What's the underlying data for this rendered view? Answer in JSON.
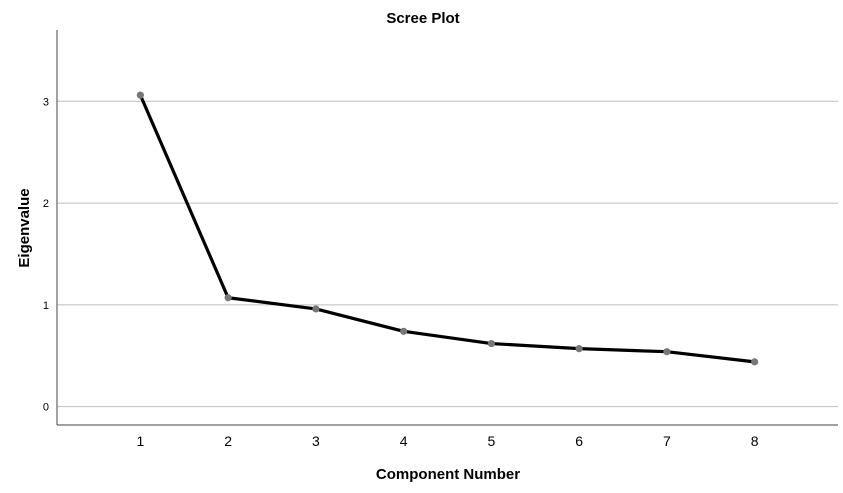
{
  "chart_data": {
    "type": "line",
    "title": "Scree Plot",
    "xlabel": "Component Number",
    "ylabel": "Eigenvalue",
    "x": [
      1,
      2,
      3,
      4,
      5,
      6,
      7,
      8
    ],
    "series": [
      {
        "values": [
          3.06,
          1.07,
          0.96,
          0.74,
          0.62,
          0.57,
          0.54,
          0.44
        ]
      }
    ],
    "xlim": [
      0.05,
      8.95
    ],
    "ylim": [
      -0.18,
      3.7
    ],
    "yticks": [
      "0",
      "1",
      "2",
      "3"
    ],
    "xticks": [
      "1",
      "2",
      "3",
      "4",
      "5",
      "6",
      "7",
      "8"
    ],
    "grid": "horizontal",
    "legend": "none",
    "colors": {
      "line": "#000000",
      "marker": "#777777",
      "grid": "#bdbdbd",
      "axis": "#444444"
    }
  }
}
